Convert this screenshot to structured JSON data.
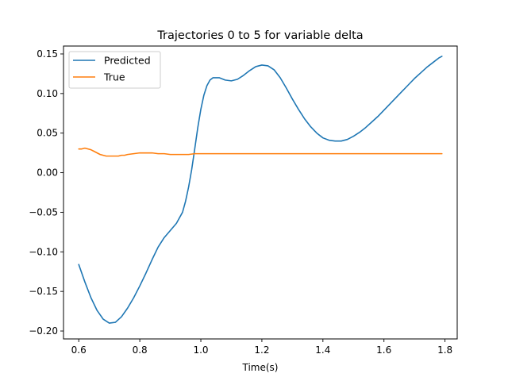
{
  "chart_data": {
    "type": "line",
    "title": "Trajectories 0 to 5 for variable delta",
    "xlabel": "Time(s)",
    "ylabel": "",
    "xlim": [
      0.55,
      1.84
    ],
    "ylim": [
      -0.21,
      0.16
    ],
    "xticks": [
      0.6,
      0.8,
      1.0,
      1.2,
      1.4,
      1.6,
      1.8
    ],
    "xtick_labels": [
      "0.6",
      "0.8",
      "1.0",
      "1.2",
      "1.4",
      "1.6",
      "1.8"
    ],
    "yticks": [
      -0.2,
      -0.15,
      -0.1,
      -0.05,
      0.0,
      0.05,
      0.1,
      0.15
    ],
    "ytick_labels": [
      "−0.20",
      "−0.15",
      "−0.10",
      "−0.05",
      "0.00",
      "0.05",
      "0.10",
      "0.15"
    ],
    "grid": false,
    "legend_position": "upper-left",
    "series": [
      {
        "name": "Predicted",
        "color": "#1f77b4",
        "x": [
          0.6,
          0.62,
          0.64,
          0.66,
          0.68,
          0.7,
          0.72,
          0.74,
          0.76,
          0.78,
          0.8,
          0.82,
          0.84,
          0.86,
          0.88,
          0.9,
          0.92,
          0.94,
          0.95,
          0.96,
          0.97,
          0.98,
          0.99,
          1.0,
          1.01,
          1.02,
          1.03,
          1.04,
          1.06,
          1.08,
          1.1,
          1.12,
          1.14,
          1.16,
          1.18,
          1.2,
          1.22,
          1.24,
          1.26,
          1.28,
          1.3,
          1.32,
          1.34,
          1.36,
          1.38,
          1.4,
          1.42,
          1.44,
          1.46,
          1.48,
          1.5,
          1.52,
          1.54,
          1.56,
          1.58,
          1.6,
          1.62,
          1.64,
          1.66,
          1.68,
          1.7,
          1.72,
          1.74,
          1.76,
          1.78,
          1.79
        ],
        "y": [
          -0.116,
          -0.138,
          -0.158,
          -0.174,
          -0.185,
          -0.19,
          -0.189,
          -0.182,
          -0.171,
          -0.158,
          -0.143,
          -0.127,
          -0.11,
          -0.094,
          -0.082,
          -0.073,
          -0.064,
          -0.05,
          -0.036,
          -0.018,
          0.004,
          0.03,
          0.057,
          0.08,
          0.098,
          0.11,
          0.117,
          0.12,
          0.12,
          0.117,
          0.116,
          0.118,
          0.123,
          0.129,
          0.134,
          0.136,
          0.135,
          0.13,
          0.12,
          0.107,
          0.093,
          0.08,
          0.068,
          0.058,
          0.05,
          0.044,
          0.041,
          0.04,
          0.04,
          0.042,
          0.046,
          0.051,
          0.057,
          0.064,
          0.071,
          0.079,
          0.087,
          0.095,
          0.103,
          0.111,
          0.119,
          0.126,
          0.133,
          0.139,
          0.145,
          0.147
        ]
      },
      {
        "name": "True",
        "color": "#ff7f0e",
        "x": [
          0.6,
          0.61,
          0.62,
          0.63,
          0.64,
          0.65,
          0.66,
          0.67,
          0.68,
          0.69,
          0.7,
          0.71,
          0.72,
          0.73,
          0.74,
          0.75,
          0.76,
          0.78,
          0.8,
          0.82,
          0.84,
          0.86,
          0.88,
          0.9,
          0.92,
          0.94,
          0.96,
          0.98,
          1.0,
          1.02,
          1.04,
          1.06,
          1.1,
          1.2,
          1.3,
          1.4,
          1.5,
          1.6,
          1.7,
          1.79
        ],
        "y": [
          0.03,
          0.03,
          0.031,
          0.03,
          0.029,
          0.027,
          0.025,
          0.023,
          0.022,
          0.021,
          0.021,
          0.021,
          0.021,
          0.021,
          0.022,
          0.022,
          0.023,
          0.024,
          0.025,
          0.025,
          0.025,
          0.024,
          0.024,
          0.023,
          0.023,
          0.023,
          0.023,
          0.024,
          0.024,
          0.024,
          0.024,
          0.024,
          0.024,
          0.024,
          0.024,
          0.024,
          0.024,
          0.024,
          0.024,
          0.024
        ]
      }
    ]
  }
}
